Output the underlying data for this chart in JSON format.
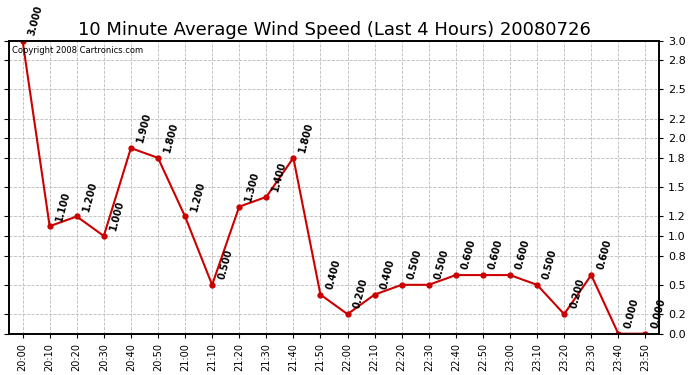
{
  "title": "10 Minute Average Wind Speed (Last 4 Hours) 20080726",
  "copyright": "Copyright 2008 Cartronics.com",
  "x_labels": [
    "20:00",
    "20:10",
    "20:20",
    "20:30",
    "20:40",
    "20:50",
    "21:00",
    "21:10",
    "21:20",
    "21:30",
    "21:40",
    "21:50",
    "22:00",
    "22:10",
    "22:20",
    "22:30",
    "22:40",
    "22:50",
    "23:00",
    "23:10",
    "23:20",
    "23:30",
    "23:40",
    "23:50"
  ],
  "y_values": [
    3.0,
    1.1,
    1.2,
    1.0,
    1.9,
    1.8,
    1.2,
    0.5,
    1.3,
    1.4,
    1.8,
    0.4,
    0.2,
    0.4,
    0.5,
    0.5,
    0.6,
    0.6,
    0.6,
    0.5,
    0.2,
    0.6,
    0.0,
    0.0
  ],
  "y_ticks": [
    0.0,
    0.2,
    0.5,
    0.8,
    1.0,
    1.2,
    1.5,
    1.8,
    2.0,
    2.2,
    2.5,
    2.8,
    3.0
  ],
  "line_color": "#cc0000",
  "marker_color": "#cc0000",
  "bg_color": "#ffffff",
  "plot_bg_color": "#ffffff",
  "grid_color": "#bbbbbb",
  "title_fontsize": 13,
  "ylim": [
    0.0,
    3.0
  ],
  "annot_fontsize": 7,
  "annot_rotation": 75
}
